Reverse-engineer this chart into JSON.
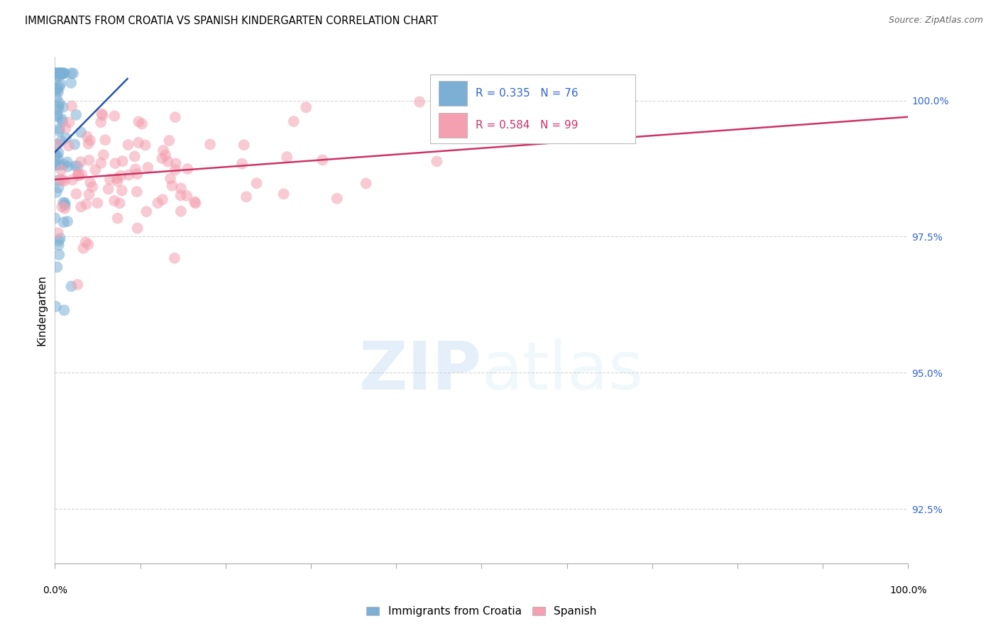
{
  "title": "IMMIGRANTS FROM CROATIA VS SPANISH KINDERGARTEN CORRELATION CHART",
  "source": "Source: ZipAtlas.com",
  "ylabel": "Kindergarten",
  "right_yticks": [
    100.0,
    97.5,
    95.0,
    92.5
  ],
  "right_ytick_labels": [
    "100.0%",
    "97.5%",
    "95.0%",
    "92.5%"
  ],
  "xmin": 0.0,
  "xmax": 100.0,
  "ymin": 91.5,
  "ymax": 100.8,
  "blue_R": 0.335,
  "blue_N": 76,
  "pink_R": 0.584,
  "pink_N": 99,
  "blue_color": "#7BAFD4",
  "pink_color": "#F4A0B0",
  "blue_line_color": "#2255AA",
  "pink_line_color": "#CC3366",
  "axis_label_color": "#3366CC",
  "grid_color": "#CCCCCC",
  "background_color": "#FFFFFF",
  "blue_trend_x": [
    0.0,
    8.5
  ],
  "blue_trend_y": [
    99.05,
    100.4
  ],
  "pink_trend_x": [
    0.0,
    100.0
  ],
  "pink_trend_y": [
    98.55,
    99.7
  ]
}
